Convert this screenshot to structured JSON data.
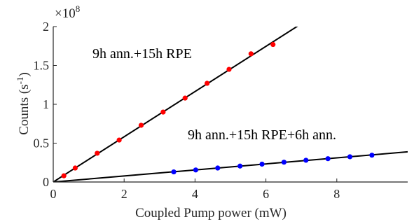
{
  "chart_data": {
    "type": "scatter",
    "xlabel": "Coupled Pump power (mW)",
    "ylabel": "Counts (s",
    "ylabel_superscript": "-1",
    "ylabel_suffix": ")",
    "xlim": [
      0,
      10
    ],
    "ylim": [
      0,
      2
    ],
    "y_scale_multiplier": "×10",
    "y_scale_exponent": "8",
    "x_ticks": [
      0,
      2,
      4,
      6,
      8
    ],
    "x_tick_labels": [
      "0",
      "2",
      "4",
      "6",
      "8"
    ],
    "y_ticks": [
      0,
      0.5,
      1,
      1.5,
      2
    ],
    "y_tick_labels": [
      "0",
      "0.5",
      "1",
      "1.5",
      "2"
    ],
    "grid": false,
    "series": [
      {
        "name": "9h ann.+15h RPE",
        "color": "#ff0000",
        "fit_color": "#000000",
        "fit_slope": 0.291,
        "x": [
          0.3,
          0.62,
          1.24,
          1.86,
          2.48,
          3.1,
          3.72,
          4.34,
          4.96,
          5.58,
          6.2
        ],
        "y": [
          0.08,
          0.18,
          0.37,
          0.54,
          0.73,
          0.9,
          1.08,
          1.27,
          1.45,
          1.65,
          1.77
        ]
      },
      {
        "name": "9h ann.+15h RPE+6h ann.",
        "color": "#0000ff",
        "fit_color": "#000000",
        "fit_slope": 0.0388,
        "x": [
          3.4,
          4.02,
          4.64,
          5.27,
          5.89,
          6.51,
          7.13,
          7.75,
          8.37,
          8.99
        ],
        "y": [
          0.13,
          0.155,
          0.18,
          0.205,
          0.23,
          0.255,
          0.28,
          0.3,
          0.325,
          0.345
        ]
      }
    ]
  }
}
